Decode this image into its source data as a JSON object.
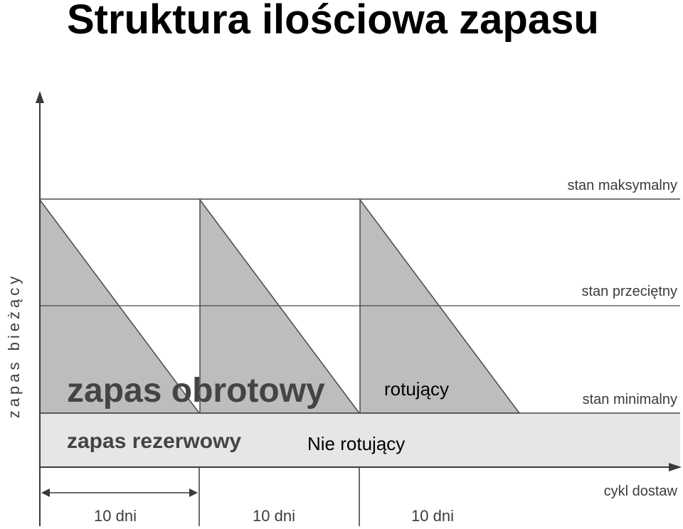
{
  "title": "Struktura ilościowa zapasu",
  "y_axis_label": "zapas bieżący",
  "levels": {
    "max": "stan maksymalny",
    "avg": "stan przeciętny",
    "min": "stan minimalny"
  },
  "x_axis_label": "cykl dostaw",
  "zones": {
    "rotating": "zapas obrotowy",
    "reserve": "zapas rezerwowy"
  },
  "annotations": {
    "rotating": "rotujący",
    "reserve": "Nie rotujący"
  },
  "intervals": [
    "10 dni",
    "10 dni",
    "10 dni"
  ],
  "colors": {
    "triangle_fill": "#bdbdbf",
    "reserve_fill": "#e6e6e6",
    "line": "#4a4a4a"
  }
}
